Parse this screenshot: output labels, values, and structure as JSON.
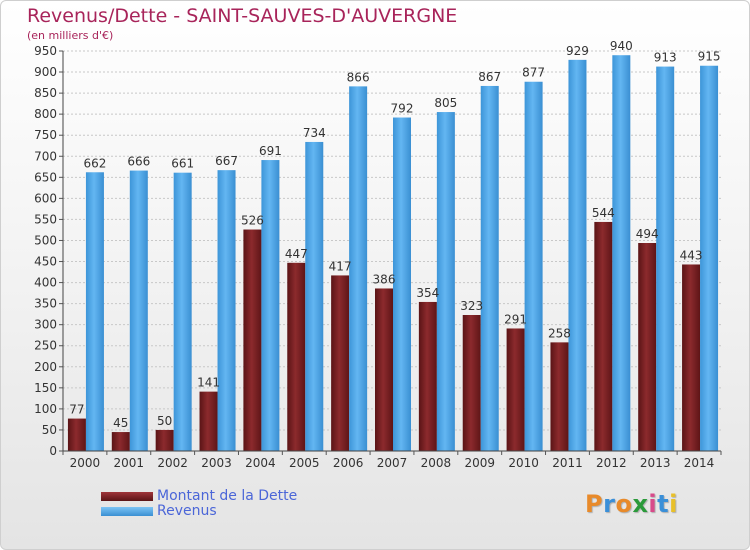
{
  "header": {
    "title": "Revenus/Dette - SAINT-SAUVES-D'AUVERGNE",
    "subtitle": "(en milliers d'€)"
  },
  "logo": {
    "text": "Proxiti",
    "colors": [
      "#e88a2a",
      "#3a8fd8",
      "#e88a2a",
      "#2a9a3a",
      "#d84a8a",
      "#3a8fd8",
      "#e8c02a"
    ]
  },
  "chart_data": {
    "type": "bar",
    "categories": [
      "2000",
      "2001",
      "2002",
      "2003",
      "2004",
      "2005",
      "2006",
      "2007",
      "2008",
      "2009",
      "2010",
      "2011",
      "2012",
      "2013",
      "2014"
    ],
    "series": [
      {
        "name": "Montant de la Dette",
        "values": [
          77,
          45,
          50,
          141,
          526,
          447,
          417,
          386,
          354,
          323,
          291,
          258,
          544,
          494,
          443
        ],
        "color": "#7a1f22"
      },
      {
        "name": "Revenus",
        "values": [
          662,
          666,
          661,
          667,
          691,
          734,
          866,
          792,
          805,
          867,
          877,
          929,
          940,
          913,
          915
        ],
        "color": "#4da6e8"
      }
    ],
    "ylim": [
      0,
      950
    ],
    "ytick_step": 50,
    "grid": true,
    "legend_position": "bottom-left"
  }
}
